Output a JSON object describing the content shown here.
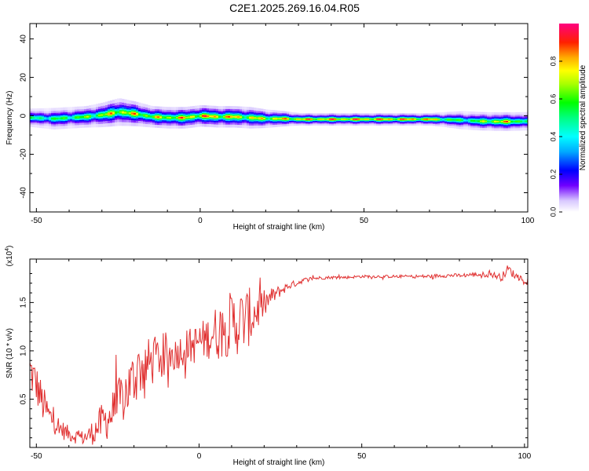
{
  "title": "C2E1.2025.269.16.04.R05",
  "chart_data": [
    {
      "type": "heatmap",
      "title": "C2E1.2025.269.16.04.R05",
      "xlabel": "Height of straight line (km)",
      "ylabel": "Frequency (Hz)",
      "xlim": [
        -52,
        100
      ],
      "ylim": [
        -50,
        48
      ],
      "xticks": [
        -50,
        0,
        50,
        100
      ],
      "yticks": [
        -40,
        -20,
        0,
        20,
        40
      ],
      "colorbar": {
        "label": "Normalized spectral amplitude",
        "range": [
          0,
          1
        ],
        "ticks": [
          "0.0",
          "0.2",
          "0.4",
          "0.6",
          "0.8"
        ]
      },
      "ridge": {
        "x": [
          -52,
          -45,
          -40,
          -35,
          -30,
          -25,
          -20,
          -15,
          -10,
          -5,
          0,
          5,
          10,
          15,
          20,
          25,
          30,
          40,
          50,
          60,
          70,
          75,
          80,
          85,
          90,
          95,
          100
        ],
        "f": [
          -1,
          -1.5,
          -1,
          -0.5,
          0.5,
          2,
          1,
          -0.5,
          -1,
          -1,
          0,
          -0.5,
          -0.5,
          -1,
          -1.5,
          -1.5,
          -1.8,
          -1.8,
          -1.8,
          -1.8,
          -1.8,
          -2,
          -2.3,
          -2.8,
          -3,
          -3,
          -2.8
        ],
        "width_hz": [
          3,
          3.5,
          3.5,
          3.5,
          4,
          4.5,
          4,
          3.5,
          3.5,
          3.5,
          3.5,
          3.5,
          3.5,
          3.5,
          3,
          2.5,
          2,
          2,
          2,
          2,
          2,
          2.5,
          3,
          3,
          3,
          3,
          3
        ],
        "amplitude": [
          0.55,
          0.6,
          0.65,
          0.7,
          0.8,
          0.9,
          0.85,
          0.8,
          0.85,
          0.9,
          0.95,
          0.95,
          0.9,
          0.85,
          0.85,
          0.9,
          0.95,
          1.0,
          1.0,
          1.0,
          0.95,
          0.7,
          0.6,
          0.7,
          0.9,
          0.85,
          0.6
        ]
      }
    },
    {
      "type": "line",
      "xlabel": "Height of straight line (km)",
      "ylabel": "SNR (10 * v/v)",
      "y_multiplier": "(x10",
      "y_multiplier_exp": "4",
      "y_multiplier_close": ")",
      "xlim": [
        -52,
        101
      ],
      "ylim": [
        0,
        1.95
      ],
      "xticks": [
        -50,
        0,
        50,
        100
      ],
      "yticks": [
        0.5,
        1.0,
        1.5
      ],
      "ytick_labels": [
        "0.5",
        "1.0",
        "1.5"
      ],
      "series": [
        {
          "name": "SNR",
          "color": "#e03030",
          "x": [
            -52,
            -50,
            -48,
            -46,
            -44,
            -42,
            -40,
            -38,
            -36,
            -34,
            -32,
            -30,
            -28,
            -26,
            -24,
            -22,
            -20,
            -18,
            -16,
            -14,
            -12,
            -10,
            -8,
            -6,
            -4,
            -2,
            0,
            2,
            4,
            6,
            8,
            10,
            12,
            14,
            16,
            18,
            20,
            22,
            24,
            26,
            28,
            30,
            32,
            35,
            40,
            45,
            50,
            55,
            60,
            65,
            70,
            75,
            80,
            85,
            90,
            93,
            95,
            97,
            100,
            101
          ],
          "y": [
            0.8,
            0.65,
            0.45,
            0.32,
            0.25,
            0.18,
            0.14,
            0.12,
            0.1,
            0.12,
            0.18,
            0.25,
            0.3,
            0.38,
            0.48,
            0.6,
            0.72,
            0.82,
            0.85,
            0.9,
            0.95,
            1.0,
            0.95,
            1.0,
            1.05,
            1.05,
            1.1,
            1.12,
            1.18,
            1.2,
            1.25,
            1.28,
            1.3,
            1.32,
            1.36,
            1.42,
            1.48,
            1.55,
            1.6,
            1.64,
            1.68,
            1.7,
            1.73,
            1.75,
            1.76,
            1.76,
            1.77,
            1.77,
            1.77,
            1.77,
            1.77,
            1.78,
            1.78,
            1.79,
            1.79,
            1.76,
            1.85,
            1.78,
            1.74,
            1.73
          ],
          "noise": [
            0.25,
            0.22,
            0.2,
            0.16,
            0.12,
            0.1,
            0.08,
            0.08,
            0.08,
            0.1,
            0.15,
            0.2,
            0.22,
            0.25,
            0.28,
            0.3,
            0.3,
            0.3,
            0.28,
            0.25,
            0.22,
            0.2,
            0.18,
            0.18,
            0.18,
            0.2,
            0.2,
            0.22,
            0.25,
            0.3,
            0.32,
            0.35,
            0.35,
            0.32,
            0.3,
            0.22,
            0.15,
            0.1,
            0.07,
            0.05,
            0.04,
            0.03,
            0.025,
            0.02,
            0.015,
            0.015,
            0.015,
            0.015,
            0.015,
            0.015,
            0.02,
            0.02,
            0.02,
            0.025,
            0.03,
            0.04,
            0.05,
            0.04,
            0.03,
            0.03
          ]
        }
      ]
    }
  ]
}
